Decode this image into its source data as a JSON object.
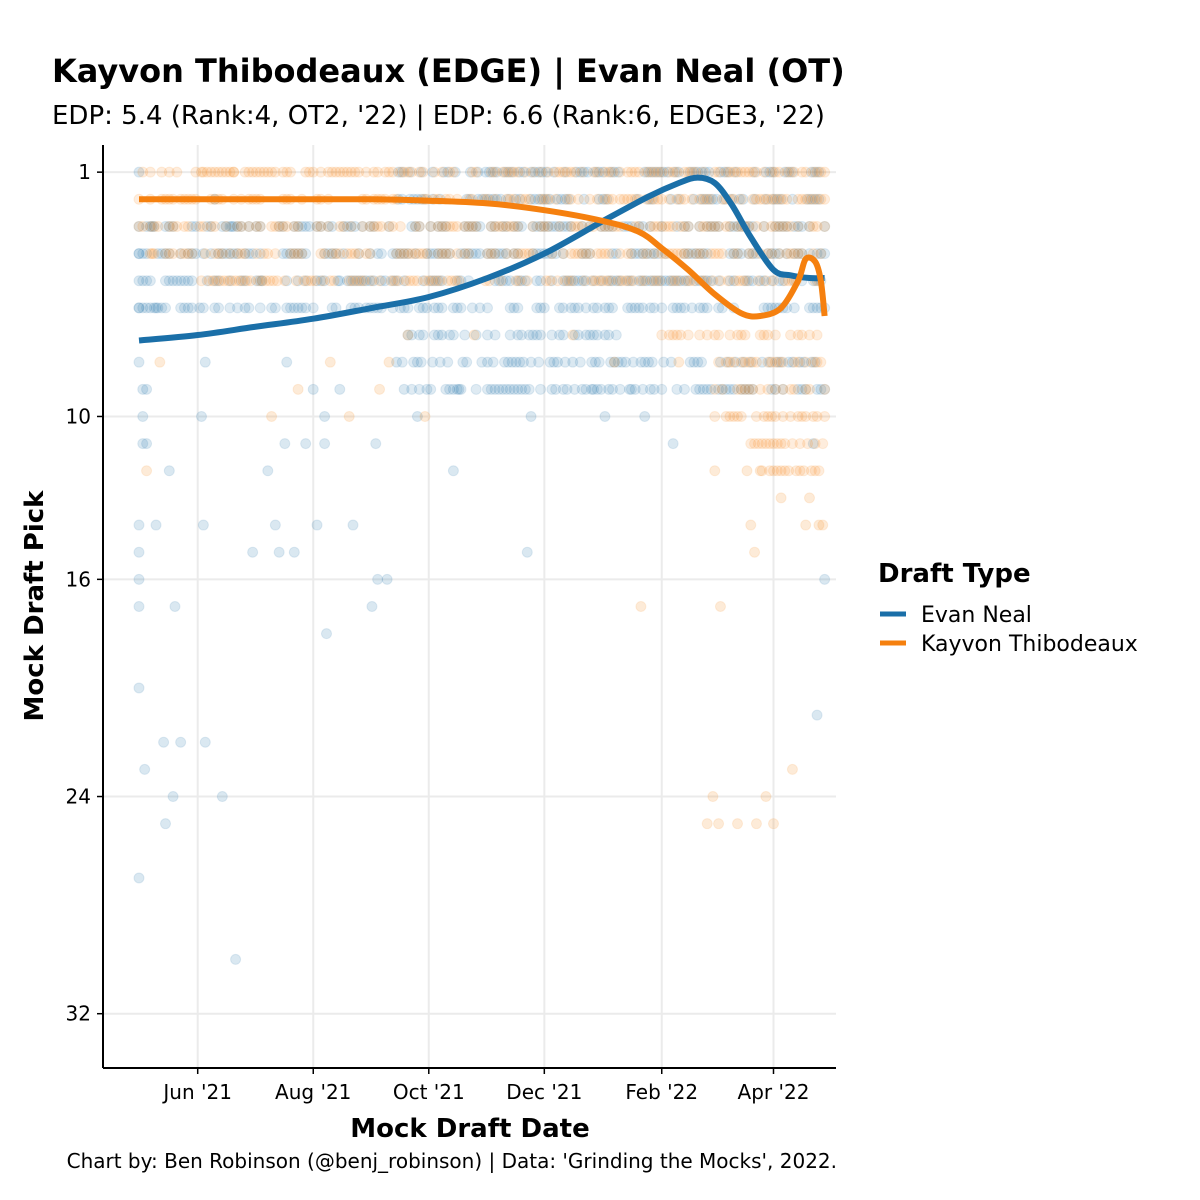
{
  "chart_data": {
    "type": "scatter",
    "title": "Kayvon Thibodeaux (EDGE) | Evan Neal (OT)",
    "subtitle": "EDP: 5.4 (Rank:4, OT2, '22) | EDP: 6.6 (Rank:6, EDGE3, '22)",
    "xlabel": "Mock Draft Date",
    "ylabel": "Mock Draft Pick",
    "caption": "Chart by: Ben Robinson (@benj_robinson) | Data: 'Grinding the Mocks', 2022.",
    "x_ticks": [
      {
        "date": "2021-06-01",
        "label": "Jun '21"
      },
      {
        "date": "2021-08-01",
        "label": "Aug '21"
      },
      {
        "date": "2021-10-01",
        "label": "Oct '21"
      },
      {
        "date": "2021-12-01",
        "label": "Dec '21"
      },
      {
        "date": "2022-02-01",
        "label": "Feb '22"
      },
      {
        "date": "2022-04-01",
        "label": "Apr '22"
      }
    ],
    "y_ticks": [
      1,
      10,
      16,
      24,
      32
    ],
    "xlim": [
      "2021-04-12",
      "2022-05-04"
    ],
    "ylim": [
      0,
      34
    ],
    "y_reversed": true,
    "grid": true,
    "legend": {
      "title": "Draft Type",
      "position": "right"
    },
    "series": [
      {
        "name": "Evan Neal",
        "color": "#1a6fa8",
        "points": [
          [
            "2021-05-01",
            1
          ],
          [
            "2021-05-01",
            3
          ],
          [
            "2021-05-01",
            4
          ],
          [
            "2021-05-01",
            5
          ],
          [
            "2021-05-01",
            6
          ],
          [
            "2021-05-01",
            8
          ],
          [
            "2021-05-01",
            14
          ],
          [
            "2021-05-01",
            15
          ],
          [
            "2021-05-01",
            16
          ],
          [
            "2021-05-01",
            17
          ],
          [
            "2021-05-01",
            20
          ],
          [
            "2021-05-01",
            27
          ],
          [
            "2021-05-03",
            9
          ],
          [
            "2021-05-03",
            10
          ],
          [
            "2021-05-03",
            11
          ],
          [
            "2021-05-04",
            23
          ],
          [
            "2021-05-05",
            9
          ],
          [
            "2021-05-05",
            11
          ],
          [
            "2021-05-08",
            3
          ],
          [
            "2021-05-10",
            6
          ],
          [
            "2021-05-10",
            14
          ],
          [
            "2021-05-14",
            22
          ],
          [
            "2021-05-15",
            25
          ],
          [
            "2021-05-17",
            12
          ],
          [
            "2021-05-19",
            24
          ],
          [
            "2021-05-20",
            17
          ],
          [
            "2021-05-23",
            22
          ],
          [
            "2021-06-03",
            10
          ],
          [
            "2021-06-04",
            14
          ],
          [
            "2021-06-05",
            8
          ],
          [
            "2021-06-05",
            22
          ],
          [
            "2021-06-10",
            2
          ],
          [
            "2021-06-14",
            24
          ],
          [
            "2021-06-19",
            3
          ],
          [
            "2021-06-21",
            30
          ],
          [
            "2021-06-26",
            6
          ],
          [
            "2021-06-30",
            15
          ],
          [
            "2021-07-05",
            5
          ],
          [
            "2021-07-08",
            12
          ],
          [
            "2021-07-12",
            14
          ],
          [
            "2021-07-14",
            15
          ],
          [
            "2021-07-17",
            11
          ],
          [
            "2021-07-18",
            8
          ],
          [
            "2021-07-22",
            15
          ],
          [
            "2021-07-28",
            11
          ],
          [
            "2021-08-01",
            9
          ],
          [
            "2021-08-03",
            14
          ],
          [
            "2021-08-07",
            11
          ],
          [
            "2021-08-07",
            10
          ],
          [
            "2021-08-08",
            18
          ],
          [
            "2021-08-14",
            5
          ],
          [
            "2021-08-15",
            9
          ],
          [
            "2021-08-22",
            14
          ],
          [
            "2021-09-01",
            17
          ],
          [
            "2021-09-03",
            11
          ],
          [
            "2021-09-04",
            16
          ],
          [
            "2021-09-09",
            16
          ],
          [
            "2021-09-14",
            8
          ],
          [
            "2021-09-18",
            9
          ],
          [
            "2021-09-25",
            10
          ],
          [
            "2021-10-08",
            7
          ],
          [
            "2021-10-14",
            12
          ],
          [
            "2021-10-17",
            9
          ],
          [
            "2021-11-01",
            8
          ],
          [
            "2021-11-22",
            15
          ],
          [
            "2021-11-24",
            10
          ],
          [
            "2021-12-08",
            8
          ],
          [
            "2021-12-16",
            8
          ],
          [
            "2021-12-26",
            9
          ],
          [
            "2022-01-02",
            10
          ],
          [
            "2022-01-04",
            9
          ],
          [
            "2022-01-15",
            9
          ],
          [
            "2022-01-23",
            10
          ],
          [
            "2022-02-07",
            11
          ],
          [
            "2022-04-22",
            11
          ],
          [
            "2022-04-24",
            21
          ],
          [
            "2022-04-28",
            16
          ]
        ],
        "bands": [
          {
            "pick": 1,
            "from": "2021-09-15",
            "to": "2022-04-28"
          },
          {
            "pick": 2,
            "from": "2021-09-15",
            "to": "2022-04-28"
          },
          {
            "pick": 3,
            "from": "2021-05-01",
            "to": "2022-04-28"
          },
          {
            "pick": 4,
            "from": "2021-05-01",
            "to": "2022-04-28"
          },
          {
            "pick": 5,
            "from": "2021-05-01",
            "to": "2022-04-28"
          },
          {
            "pick": 6,
            "from": "2021-05-01",
            "to": "2022-04-28"
          },
          {
            "pick": 7,
            "from": "2021-09-20",
            "to": "2022-01-10"
          },
          {
            "pick": 8,
            "from": "2021-09-15",
            "to": "2022-04-28"
          },
          {
            "pick": 9,
            "from": "2021-09-20",
            "to": "2022-04-28"
          }
        ],
        "trend": [
          [
            "2021-05-01",
            7.2
          ],
          [
            "2021-06-01",
            7.0
          ],
          [
            "2021-07-01",
            6.7
          ],
          [
            "2021-08-01",
            6.4
          ],
          [
            "2021-09-01",
            6.0
          ],
          [
            "2021-10-01",
            5.6
          ],
          [
            "2021-11-01",
            4.9
          ],
          [
            "2021-12-01",
            4.0
          ],
          [
            "2022-01-01",
            2.8
          ],
          [
            "2022-01-25",
            1.9
          ],
          [
            "2022-02-10",
            1.4
          ],
          [
            "2022-02-20",
            1.2
          ],
          [
            "2022-03-01",
            1.4
          ],
          [
            "2022-03-10",
            2.2
          ],
          [
            "2022-03-20",
            3.4
          ],
          [
            "2022-04-01",
            4.6
          ],
          [
            "2022-04-10",
            4.8
          ],
          [
            "2022-04-20",
            4.9
          ],
          [
            "2022-04-28",
            4.9
          ]
        ]
      },
      {
        "name": "Kayvon Thibodeaux",
        "color": "#f5800f",
        "points": [
          [
            "2021-05-05",
            12
          ],
          [
            "2021-05-08",
            4
          ],
          [
            "2021-05-12",
            8
          ],
          [
            "2021-06-03",
            1
          ],
          [
            "2021-06-05",
            4
          ],
          [
            "2021-06-20",
            1
          ],
          [
            "2021-07-05",
            5
          ],
          [
            "2021-07-10",
            10
          ],
          [
            "2021-07-24",
            9
          ],
          [
            "2021-08-10",
            8
          ],
          [
            "2021-08-20",
            10
          ],
          [
            "2021-09-05",
            9
          ],
          [
            "2021-09-10",
            8
          ],
          [
            "2021-09-20",
            7
          ],
          [
            "2021-09-29",
            10
          ],
          [
            "2021-10-25",
            7
          ],
          [
            "2021-12-16",
            7
          ],
          [
            "2022-01-07",
            8
          ],
          [
            "2022-01-21",
            17
          ],
          [
            "2022-02-10",
            8
          ],
          [
            "2022-02-25",
            25
          ],
          [
            "2022-02-28",
            24
          ],
          [
            "2022-03-01",
            12
          ],
          [
            "2022-03-03",
            25
          ],
          [
            "2022-03-04",
            17
          ],
          [
            "2022-03-13",
            25
          ],
          [
            "2022-03-18",
            12
          ],
          [
            "2022-03-20",
            14
          ],
          [
            "2022-03-22",
            15
          ],
          [
            "2022-03-23",
            25
          ],
          [
            "2022-03-25",
            12
          ],
          [
            "2022-03-28",
            24
          ],
          [
            "2022-04-01",
            25
          ],
          [
            "2022-04-05",
            13
          ],
          [
            "2022-04-11",
            23
          ],
          [
            "2022-04-18",
            14
          ],
          [
            "2022-04-20",
            13
          ],
          [
            "2022-04-25",
            14
          ],
          [
            "2022-04-27",
            14
          ]
        ],
        "bands": [
          {
            "pick": 1,
            "from": "2021-05-01",
            "to": "2022-04-28"
          },
          {
            "pick": 2,
            "from": "2021-05-01",
            "to": "2022-04-28"
          },
          {
            "pick": 3,
            "from": "2021-05-01",
            "to": "2022-04-28"
          },
          {
            "pick": 4,
            "from": "2021-05-05",
            "to": "2022-04-28"
          },
          {
            "pick": 5,
            "from": "2021-06-01",
            "to": "2022-04-28"
          },
          {
            "pick": 7,
            "from": "2022-02-01",
            "to": "2022-04-28"
          },
          {
            "pick": 8,
            "from": "2022-03-01",
            "to": "2022-04-28"
          },
          {
            "pick": 9,
            "from": "2022-03-01",
            "to": "2022-04-28"
          },
          {
            "pick": 10,
            "from": "2022-03-01",
            "to": "2022-04-28"
          },
          {
            "pick": 11,
            "from": "2022-03-20",
            "to": "2022-04-28"
          },
          {
            "pick": 12,
            "from": "2022-03-20",
            "to": "2022-04-28"
          }
        ],
        "trend": [
          [
            "2021-05-01",
            2.0
          ],
          [
            "2021-07-01",
            2.0
          ],
          [
            "2021-09-01",
            2.0
          ],
          [
            "2021-10-01",
            2.05
          ],
          [
            "2021-11-01",
            2.15
          ],
          [
            "2021-12-01",
            2.4
          ],
          [
            "2022-01-01",
            2.8
          ],
          [
            "2022-01-20",
            3.2
          ],
          [
            "2022-02-01",
            3.8
          ],
          [
            "2022-02-15",
            4.6
          ],
          [
            "2022-03-01",
            5.5
          ],
          [
            "2022-03-15",
            6.2
          ],
          [
            "2022-03-25",
            6.3
          ],
          [
            "2022-04-05",
            6.0
          ],
          [
            "2022-04-14",
            5.0
          ],
          [
            "2022-04-18",
            4.2
          ],
          [
            "2022-04-23",
            4.3
          ],
          [
            "2022-04-26",
            5.0
          ],
          [
            "2022-04-28",
            6.3
          ]
        ]
      }
    ]
  }
}
